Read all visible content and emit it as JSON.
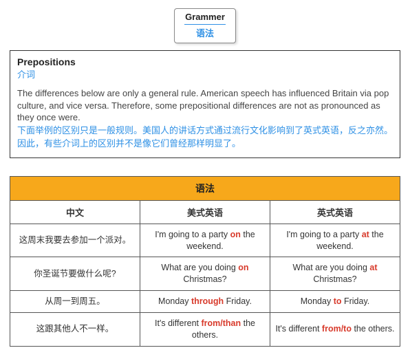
{
  "badge": {
    "en": "Grammer",
    "cn": "语法"
  },
  "intro": {
    "title_en": "Prepositions",
    "title_cn": "介词",
    "body_en": "The differences below are only a general rule. American speech has influenced Britain via pop culture, and vice versa. Therefore, some prepositional differences are not as pronounced as they once were.",
    "body_cn": "下面举例的区别只是一般规则。美国人的讲话方式通过流行文化影响到了英式英语，反之亦然。因此，有些介词上的区别并不是像它们曾经那样明显了。"
  },
  "table": {
    "super_header": "语法",
    "header_bg": "#f7a81b",
    "highlight_color": "#d83a2b",
    "columns": [
      "中文",
      "美式英语",
      "英式英语"
    ],
    "rows": [
      {
        "cn": "这周末我要去参加一个派对。",
        "us": [
          [
            "I'm going to a party ",
            0
          ],
          [
            "on",
            1
          ],
          [
            " the weekend.",
            0
          ]
        ],
        "uk": [
          [
            "I'm going to a party ",
            0
          ],
          [
            "at",
            1
          ],
          [
            " the weekend.",
            0
          ]
        ]
      },
      {
        "cn": "你圣诞节要做什么呢?",
        "us": [
          [
            "What are you doing ",
            0
          ],
          [
            "on",
            1
          ],
          [
            " Christmas?",
            0
          ]
        ],
        "uk": [
          [
            "What are you doing ",
            0
          ],
          [
            "at",
            1
          ],
          [
            " Christmas?",
            0
          ]
        ]
      },
      {
        "cn": "从周一到周五。",
        "us": [
          [
            "Monday ",
            0
          ],
          [
            "through",
            1
          ],
          [
            " Friday.",
            0
          ]
        ],
        "uk": [
          [
            "Monday ",
            0
          ],
          [
            "to",
            1
          ],
          [
            " Friday.",
            0
          ]
        ]
      },
      {
        "cn": "这跟其他人不一样。",
        "us": [
          [
            "It's different ",
            0
          ],
          [
            "from/than",
            1
          ],
          [
            " the others.",
            0
          ]
        ],
        "uk": [
          [
            "It's different ",
            0
          ],
          [
            "from/to",
            1
          ],
          [
            " the others.",
            0
          ]
        ]
      }
    ]
  }
}
